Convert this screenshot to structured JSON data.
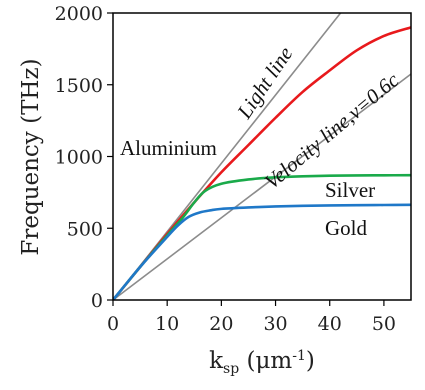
{
  "chart_data": {
    "type": "line",
    "title": "",
    "xlabel": "k",
    "xlabel_sub": "sp",
    "xlabel_unit_open": " (μm",
    "xlabel_unit_sup": "-1",
    "xlabel_unit_close": ")",
    "ylabel": "Frequency (THz)",
    "xlim": [
      0,
      55
    ],
    "ylim": [
      0,
      2000
    ],
    "xticks": [
      0,
      10,
      20,
      30,
      40,
      50
    ],
    "yticks": [
      0,
      500,
      1000,
      1500,
      2000
    ],
    "xtick_labels": [
      "0",
      "10",
      "20",
      "30",
      "40",
      "50"
    ],
    "ytick_labels": [
      "0",
      "500",
      "1000",
      "1500",
      "2000"
    ],
    "grid": false,
    "series": [
      {
        "name": "Aluminium",
        "color": "#e8191c",
        "x": [
          0,
          5,
          10,
          15,
          20,
          25,
          30,
          35,
          40,
          45,
          50,
          55
        ],
        "y": [
          0,
          230,
          460,
          680,
          890,
          1080,
          1270,
          1450,
          1600,
          1740,
          1840,
          1900
        ]
      },
      {
        "name": "Silver",
        "color": "#1aaa4a",
        "x": [
          0,
          5,
          10,
          13,
          15,
          17,
          20,
          25,
          30,
          35,
          40,
          45,
          50,
          55
        ],
        "y": [
          0,
          230,
          450,
          580,
          680,
          760,
          810,
          840,
          855,
          862,
          866,
          868,
          869,
          870
        ]
      },
      {
        "name": "Gold",
        "color": "#1f78c8",
        "x": [
          0,
          5,
          10,
          12,
          14,
          16,
          18,
          20,
          25,
          30,
          35,
          40,
          45,
          50,
          55
        ],
        "y": [
          0,
          230,
          440,
          520,
          580,
          610,
          625,
          635,
          645,
          652,
          656,
          659,
          661,
          662,
          663
        ]
      },
      {
        "name": "Light line",
        "color": "#8c8c8c",
        "x": [
          0,
          42
        ],
        "y": [
          0,
          2000
        ]
      },
      {
        "name": "Velocity line, v=0.6c",
        "color": "#8c8c8c",
        "x": [
          0,
          55
        ],
        "y": [
          0,
          1575
        ]
      }
    ],
    "annotations": {
      "aluminium": "Aluminium",
      "silver": "Silver",
      "gold": "Gold",
      "light_line": "Light line",
      "velocity_line": "Velocity line,v=0.6c"
    }
  }
}
